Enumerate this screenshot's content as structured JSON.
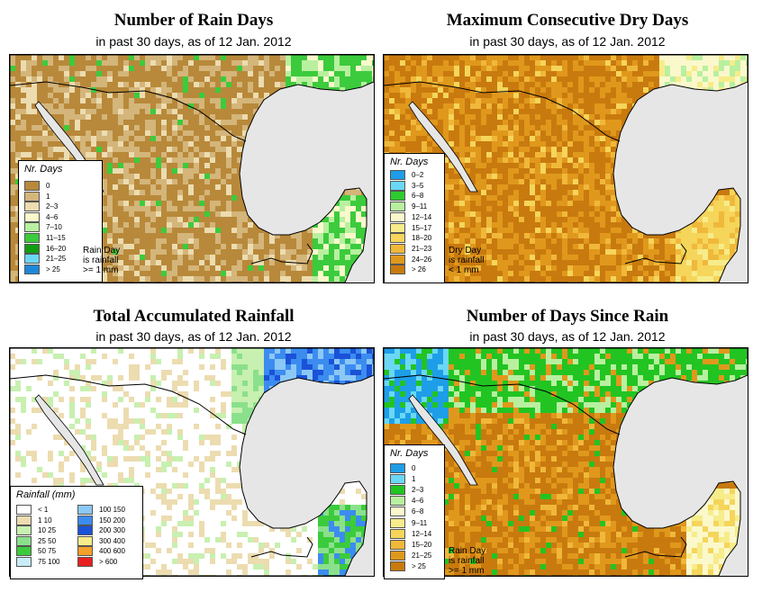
{
  "panels": [
    {
      "title": "Number of Rain Days",
      "subtitle": "in past 30 days, as of  12 Jan. 2012",
      "legend_title": "Nr. Days",
      "legend": [
        {
          "label": "0",
          "color": "#b8893a"
        },
        {
          "label": "1",
          "color": "#d4b57a"
        },
        {
          "label": "2–3",
          "color": "#ecdcb0"
        },
        {
          "label": "4–6",
          "color": "#fbf8cc"
        },
        {
          "label": "7–10",
          "color": "#b8f0a0"
        },
        {
          "label": "11–15",
          "color": "#3ccb3c"
        },
        {
          "label": "16–20",
          "color": "#119e11"
        },
        {
          "label": "21–25",
          "color": "#6ad8f5"
        },
        {
          "label": "> 25",
          "color": "#1e88d8"
        }
      ],
      "note": [
        "Rain Day",
        "is rainfall",
        ">= 1 mm"
      ]
    },
    {
      "title": "Maximum Consecutive Dry Days",
      "subtitle": "in past 30 days, as of  12 Jan. 2012",
      "legend_title": "Nr. Days",
      "legend": [
        {
          "label": "0–2",
          "color": "#1e9ee8"
        },
        {
          "label": "3–5",
          "color": "#6ad8f5"
        },
        {
          "label": "6–8",
          "color": "#2ecc2e"
        },
        {
          "label": "9–11",
          "color": "#b8f0a0"
        },
        {
          "label": "12–14",
          "color": "#fbf8cc"
        },
        {
          "label": "15–17",
          "color": "#f7ec8a"
        },
        {
          "label": "18–20",
          "color": "#f5d55a"
        },
        {
          "label": "21–23",
          "color": "#f0b83a"
        },
        {
          "label": "24–26",
          "color": "#e0981c"
        },
        {
          "label": "> 26",
          "color": "#c87a0e"
        }
      ],
      "note": [
        "Dry Day",
        "is rainfall",
        "< 1 mm"
      ]
    },
    {
      "title": "Total Accumulated Rainfall",
      "subtitle": "in past 30 days, as of  12 Jan. 2012",
      "legend_title": "Rainfall (mm)",
      "legend": [
        {
          "label": "< 1",
          "color": "#ffffff"
        },
        {
          "label": "1    10",
          "color": "#ecdcb0"
        },
        {
          "label": "10    25",
          "color": "#c8f0b0"
        },
        {
          "label": "25    50",
          "color": "#8be08b"
        },
        {
          "label": "50    75",
          "color": "#3ccb3c"
        },
        {
          "label": "75    100",
          "color": "#c8ecf8"
        },
        {
          "label": "100    150",
          "color": "#8cc8f5"
        },
        {
          "label": "150    200",
          "color": "#3c8cf0"
        },
        {
          "label": "200    300",
          "color": "#1a52d8"
        },
        {
          "label": "300    400",
          "color": "#f7ec8a"
        },
        {
          "label": "400    600",
          "color": "#f5a028"
        },
        {
          "label": "> 600",
          "color": "#e82020"
        }
      ],
      "note": []
    },
    {
      "title": "Number of Days Since Rain",
      "subtitle": "in past 30 days, as of  12 Jan. 2012",
      "legend_title": "Nr. Days",
      "legend": [
        {
          "label": "0",
          "color": "#1e9ee8"
        },
        {
          "label": "1",
          "color": "#6ad8f5"
        },
        {
          "label": "2–3",
          "color": "#22c422"
        },
        {
          "label": "4–6",
          "color": "#b8f0a0"
        },
        {
          "label": "6–8",
          "color": "#fbf8cc"
        },
        {
          "label": "9–11",
          "color": "#f7ec8a"
        },
        {
          "label": "12–14",
          "color": "#f5d55a"
        },
        {
          "label": "15–20",
          "color": "#f0b83a"
        },
        {
          "label": "21–25",
          "color": "#e0981c"
        },
        {
          "label": "> 25",
          "color": "#c87a0e"
        }
      ],
      "note": [
        "Rain Day",
        "is rainfall",
        ">= 1 mm"
      ]
    }
  ],
  "colors": {
    "ocean": "#e6e6e6",
    "border": "#000000"
  }
}
